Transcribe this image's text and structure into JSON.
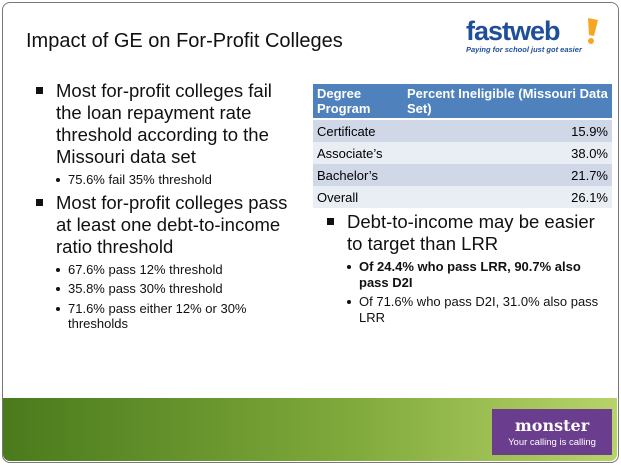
{
  "header": {
    "title": "Impact of GE on For-Profit Colleges",
    "logo": "fastweb",
    "logo_tagline": "Paying for school just got easier"
  },
  "left_bullets": [
    {
      "text": "Most for-profit colleges fail the loan repayment rate threshold according to the Missouri data set",
      "sub": [
        "75.6% fail 35% threshold"
      ]
    },
    {
      "text": "Most for-profit colleges pass at least one debt-to-income ratio threshold",
      "sub": [
        "67.6% pass 12% threshold",
        "35.8% pass 30% threshold",
        "71.6% pass either 12% or 30% thresholds"
      ]
    }
  ],
  "table": {
    "columns": [
      "Degree Program",
      "Percent Ineligible (Missouri Data Set)"
    ],
    "rows": [
      [
        "Certificate",
        "15.9%"
      ],
      [
        "Associate’s",
        "38.0%"
      ],
      [
        "Bachelor’s",
        "21.7%"
      ],
      [
        "Overall",
        "26.1%"
      ]
    ]
  },
  "right_bullets": [
    {
      "text": "Debt-to-income may be easier to target than LRR",
      "sub": [
        {
          "text": "Of 24.4% who pass LRR, 90.7% also pass D2I",
          "bold": true
        },
        {
          "text": "Of 71.6% who pass D2I, 31.0% also pass LRR",
          "bold": false
        }
      ]
    }
  ],
  "footer": {
    "logo": "monster",
    "tagline": "Your calling is calling"
  }
}
